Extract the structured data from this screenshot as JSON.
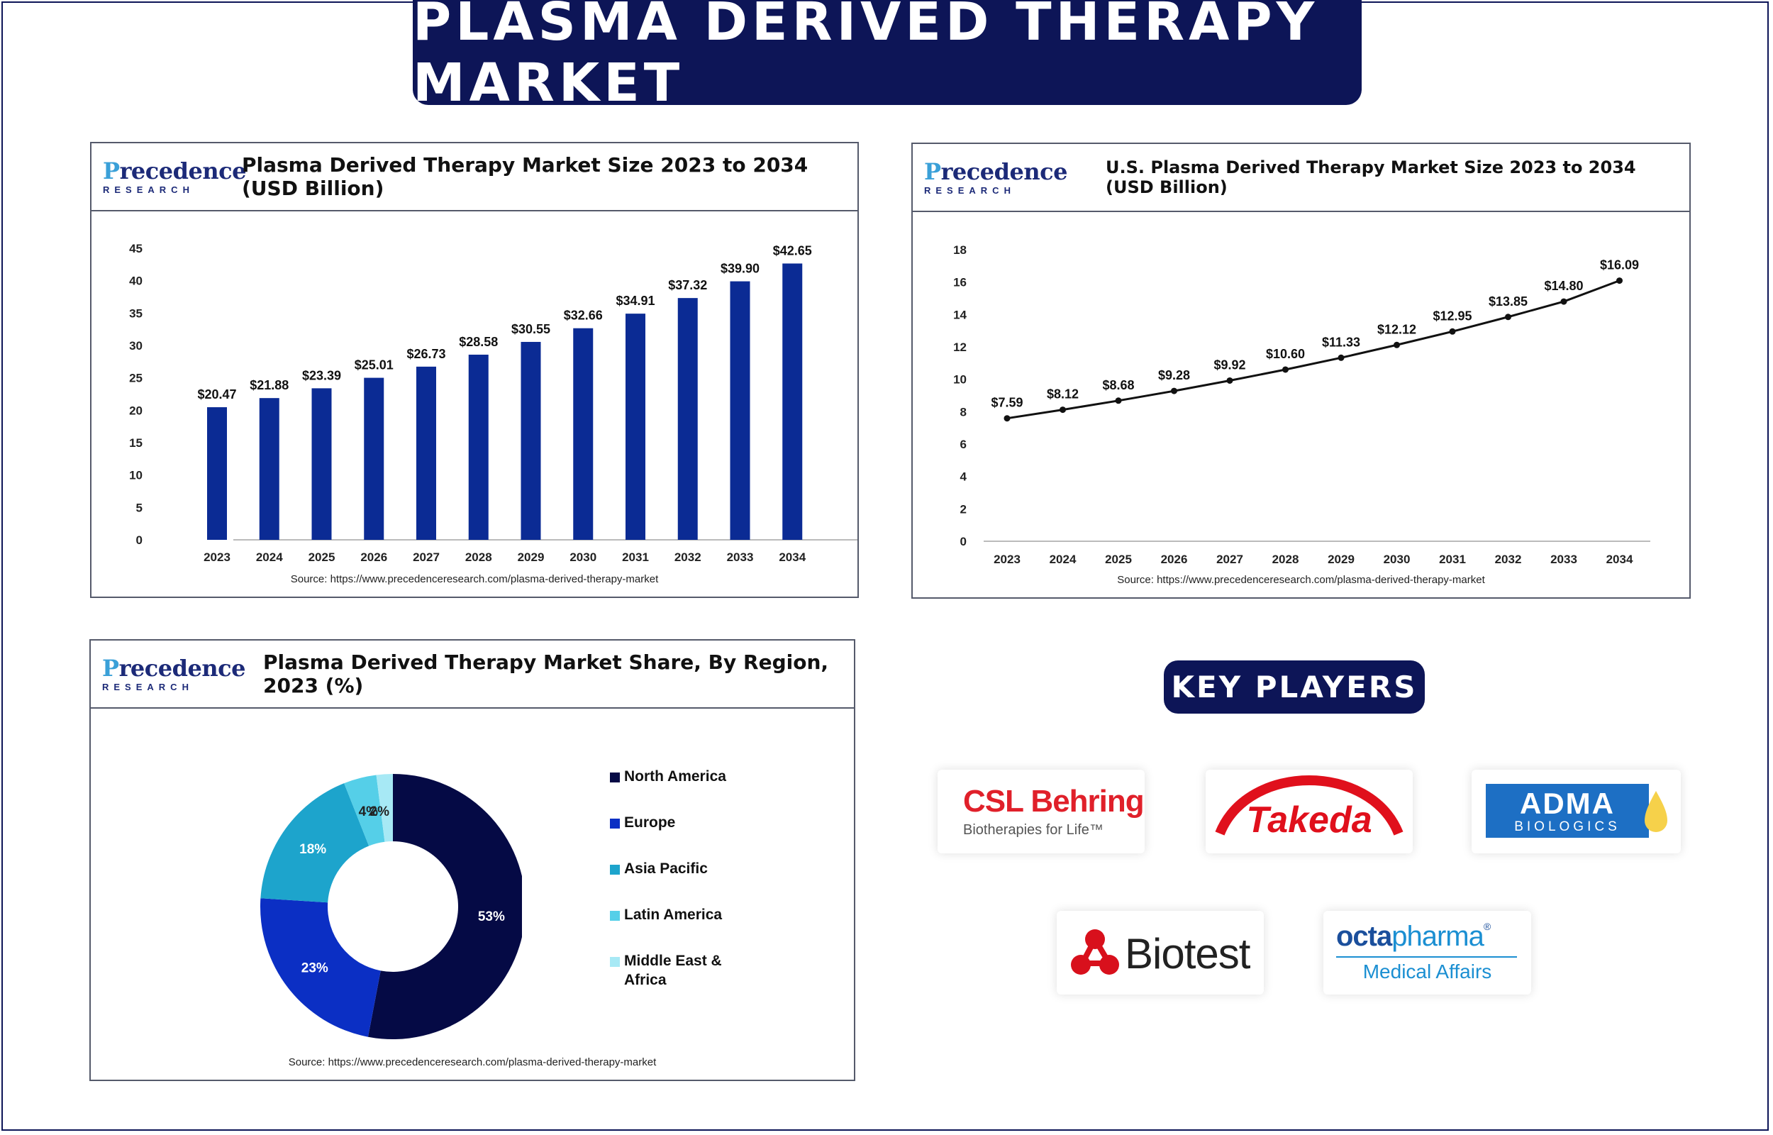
{
  "title": "PLASMA DERIVED THERAPY MARKET",
  "logo": {
    "line1": "Precedence",
    "line2": "RESEARCH"
  },
  "source": "Source: https://www.precedenceresearch.com/plasma-derived-therapy-market",
  "colors": {
    "navy": "#0d1557",
    "bar": "#0b2b94",
    "line": "#111111"
  },
  "chart_data": [
    {
      "type": "bar",
      "title": "Plasma Derived Therapy Market Size 2023 to 2034 (USD Billion)",
      "categories": [
        "2023",
        "2024",
        "2025",
        "2026",
        "2027",
        "2028",
        "2029",
        "2030",
        "2031",
        "2032",
        "2033",
        "2034"
      ],
      "values": [
        20.47,
        21.88,
        23.39,
        25.01,
        26.73,
        28.58,
        30.55,
        32.66,
        34.91,
        37.32,
        39.9,
        42.65
      ],
      "labels": [
        "$20.47",
        "$21.88",
        "$23.39",
        "$25.01",
        "$26.73",
        "$28.58",
        "$30.55",
        "$32.66",
        "$34.91",
        "$37.32",
        "$39.90",
        "$42.65"
      ],
      "ylim": [
        0,
        45
      ],
      "yticks": [
        0,
        5,
        10,
        15,
        20,
        25,
        30,
        35,
        40,
        45
      ],
      "grid": false
    },
    {
      "type": "line",
      "title": "U.S. Plasma Derived Therapy Market Size 2023 to 2034 (USD Billion)",
      "categories": [
        "2023",
        "2024",
        "2025",
        "2026",
        "2027",
        "2028",
        "2029",
        "2030",
        "2031",
        "2032",
        "2033",
        "2034"
      ],
      "values": [
        7.59,
        8.12,
        8.68,
        9.28,
        9.92,
        10.6,
        11.33,
        12.12,
        12.95,
        13.85,
        14.8,
        16.09
      ],
      "labels": [
        "$7.59",
        "$8.12",
        "$8.68",
        "$9.28",
        "$9.92",
        "$10.60",
        "$11.33",
        "$12.12",
        "$12.95",
        "$13.85",
        "$14.80",
        "$16.09"
      ],
      "ylim": [
        0,
        18
      ],
      "yticks": [
        0,
        2,
        4,
        6,
        8,
        10,
        12,
        14,
        16,
        18
      ],
      "grid": false
    },
    {
      "type": "pie",
      "title": "Plasma Derived Therapy Market Share, By Region, 2023 (%)",
      "series": [
        {
          "name": "North America",
          "value": 53,
          "label": "53%",
          "color": "#050a45"
        },
        {
          "name": "Europe",
          "value": 23,
          "label": "23%",
          "color": "#0b2fc4"
        },
        {
          "name": "Asia Pacific",
          "value": 18,
          "label": "18%",
          "color": "#1da4cc"
        },
        {
          "name": "Latin America",
          "value": 4,
          "label": "4%",
          "color": "#55cfe8"
        },
        {
          "name": "Middle East & Africa",
          "value": 2,
          "label": "2%",
          "color": "#a7e9f5"
        }
      ],
      "legend": "right"
    }
  ],
  "key_players": {
    "heading": "KEY PLAYERS",
    "csl": {
      "name": "CSL Behring",
      "tagline": "Biotherapies for Life™"
    },
    "takeda": "Takeda",
    "adma": {
      "name": "ADMA",
      "sub": "BIOLOGICS"
    },
    "biotest": "Biotest",
    "octapharma": {
      "name1": "octa",
      "name2": "pharma",
      "sub": "Medical Affairs"
    }
  }
}
